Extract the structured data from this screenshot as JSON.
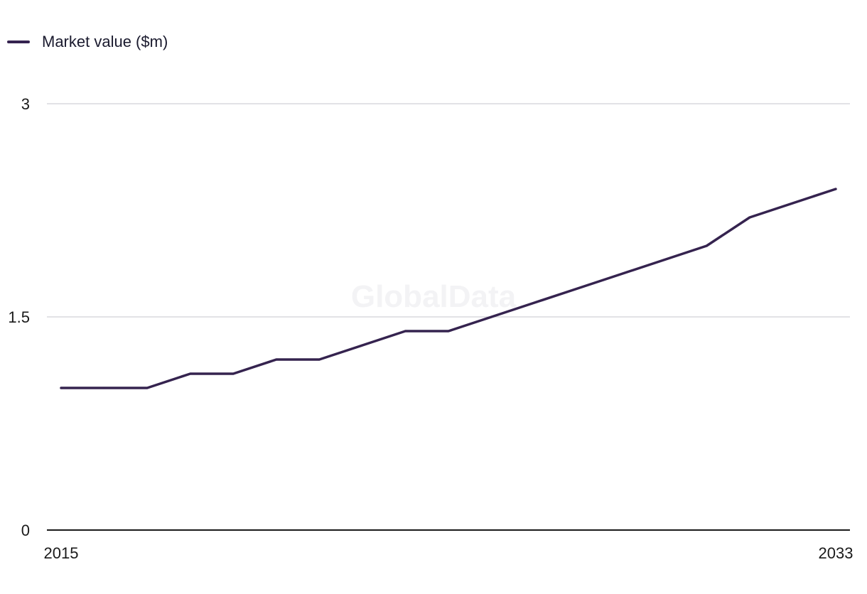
{
  "chart_data": {
    "type": "line",
    "title": "",
    "xlabel": "",
    "ylabel": "",
    "x": [
      2015,
      2016,
      2017,
      2018,
      2019,
      2020,
      2021,
      2022,
      2023,
      2024,
      2025,
      2026,
      2027,
      2028,
      2029,
      2030,
      2031,
      2032,
      2033
    ],
    "series": [
      {
        "name": "Market value ($m)",
        "color": "#35234f",
        "values": [
          1.0,
          1.0,
          1.0,
          1.1,
          1.1,
          1.2,
          1.2,
          1.3,
          1.4,
          1.4,
          1.5,
          1.6,
          1.7,
          1.8,
          1.9,
          2.0,
          2.2,
          2.3,
          2.4
        ]
      }
    ],
    "ylim": [
      0,
      3
    ],
    "yticks": [
      "0",
      "1.5",
      "3"
    ],
    "xticks": [
      "2015",
      "2033"
    ],
    "grid": true,
    "legend_position": "top-left",
    "watermark": "GlobalData"
  }
}
